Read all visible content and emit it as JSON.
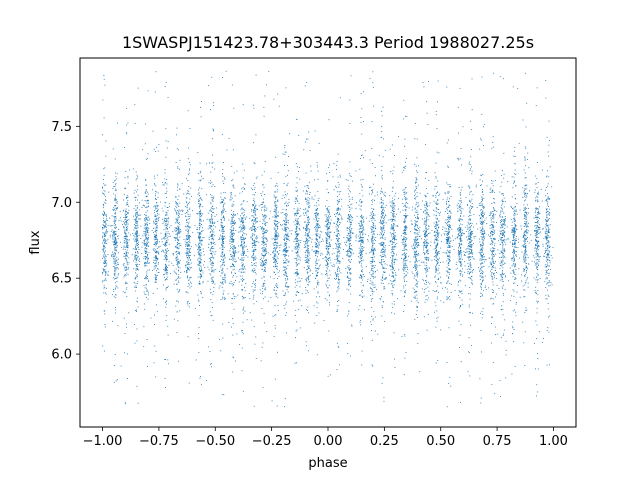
{
  "chart_data": {
    "type": "scatter",
    "title": "1SWASPJ151423.78+303443.3 Period 1988027.25s",
    "xlabel": "phase",
    "ylabel": "flux",
    "xlim": [
      -1.1,
      1.1
    ],
    "ylim": [
      5.52,
      7.95
    ],
    "x_ticks": [
      -1.0,
      -0.75,
      -0.5,
      -0.25,
      0.0,
      0.25,
      0.5,
      0.75,
      1.0
    ],
    "x_tick_labels": [
      "−1.00",
      "−0.75",
      "−0.50",
      "−0.25",
      "0.00",
      "0.25",
      "0.50",
      "0.75",
      "1.00"
    ],
    "y_ticks": [
      6.0,
      6.5,
      7.0,
      7.5
    ],
    "y_tick_labels": [
      "6.0",
      "6.5",
      "7.0",
      "7.5"
    ],
    "grid": false,
    "legend": "none",
    "point_color": "#1f77b4",
    "x_range": [
      -1.0,
      1.0
    ],
    "flux_center": 6.75,
    "flux_core_spread": 0.17,
    "flux_min": 5.65,
    "flux_max": 7.87,
    "point_count": 9000
  }
}
